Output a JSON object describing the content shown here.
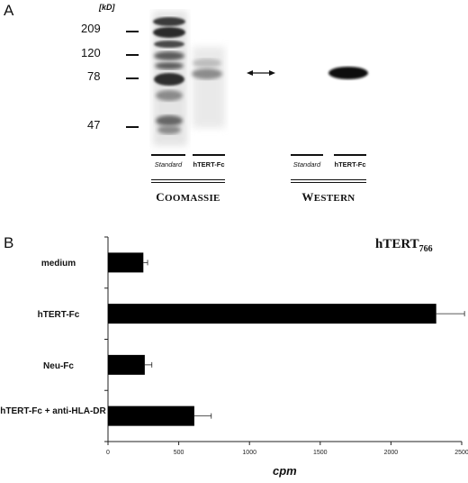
{
  "panel_a": {
    "letter": "A",
    "unit": "[kD]",
    "markers": [
      "209",
      "120",
      "78",
      "47"
    ],
    "lanes": {
      "standard_1": "Standard",
      "htert_1": "hTERT-Fc",
      "standard_2": "Standard",
      "htert_2": "hTERT-Fc"
    },
    "groups": {
      "coomassie": {
        "first": "C",
        "rest": "OOMASSIE"
      },
      "western": {
        "first": "W",
        "rest": "ESTERN"
      }
    }
  },
  "panel_b": {
    "letter": "B",
    "title_main": "hTERT",
    "title_sub": "766"
  },
  "chart_data": {
    "type": "bar",
    "orientation": "horizontal",
    "categories": [
      "medium",
      "hTERT-Fc",
      "Neu-Fc",
      "hTERT-Fc + anti-HLA-DR"
    ],
    "values": [
      250,
      2320,
      260,
      610
    ],
    "errors": [
      30,
      200,
      50,
      120
    ],
    "xlabel": "cpm",
    "xlim": [
      0,
      2500
    ],
    "xticks": [
      "0",
      "500",
      "1000",
      "1500",
      "2000",
      "2500"
    ],
    "bar_color": "#000000",
    "grid": false
  }
}
